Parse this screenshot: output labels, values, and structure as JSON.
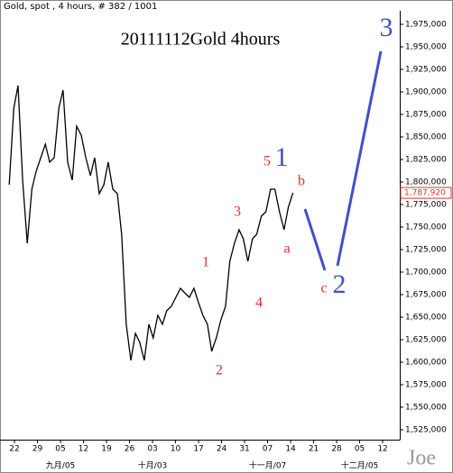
{
  "chart_data": {
    "type": "line",
    "header": "Gold, spot , 4 hours, # 382 / 1001",
    "title": "20111112Gold 4hours",
    "watermark": "Joe",
    "series": [
      {
        "name": "Gold",
        "color": "#000000",
        "x": [
          -1.6,
          -0.2,
          1.1,
          2.5,
          3.9,
          5.3,
          6.6,
          8.0,
          9.4,
          10.7,
          12.1,
          13.5,
          14.8,
          16.2,
          17.6,
          18.9,
          20.3,
          21.7,
          23.1,
          24.4,
          25.8,
          27.2,
          28.5,
          29.9,
          31.3,
          32.6,
          34.0,
          35.4,
          36.8,
          38.1,
          39.5,
          40.9,
          42.2,
          43.6,
          45.0,
          46.3,
          47.7,
          49.1,
          50.5,
          51.8,
          53.2,
          54.6,
          55.9,
          57.3,
          58.7,
          60.0,
          61.4,
          62.8,
          64.2,
          65.5,
          66.9,
          68.3,
          69.6,
          71.0,
          72.4,
          73.7,
          75.1,
          76.5,
          77.9,
          79.2,
          80.6,
          82.0,
          83.3,
          84.7
        ],
        "values": [
          1797000,
          1882000,
          1907000,
          1802000,
          1732000,
          1792000,
          1812000,
          1827000,
          1842000,
          1822000,
          1827000,
          1882000,
          1902000,
          1822000,
          1802000,
          1862000,
          1852000,
          1827000,
          1807000,
          1827000,
          1787000,
          1797000,
          1822000,
          1792000,
          1787000,
          1742000,
          1642000,
          1602000,
          1632000,
          1622000,
          1602000,
          1642000,
          1627000,
          1652000,
          1642000,
          1657000,
          1662000,
          1672000,
          1682000,
          1677000,
          1672000,
          1682000,
          1667000,
          1652000,
          1642000,
          1612000,
          1627000,
          1647000,
          1662000,
          1712000,
          1732000,
          1747000,
          1737000,
          1712000,
          1737000,
          1742000,
          1762000,
          1767000,
          1792000,
          1792000,
          1767000,
          1747000,
          1772000,
          1788000
        ]
      }
    ],
    "last_price": {
      "value": 1787920,
      "label": "1,787,920"
    },
    "wave_labels": [
      "1",
      "2",
      "3",
      "4",
      "5",
      "a",
      "b",
      "c"
    ],
    "wave_targets": [
      "1",
      "2",
      "3"
    ],
    "xlim": [
      -4.4,
      117.2
    ],
    "xticks": [
      {
        "value": 0,
        "label": "22"
      },
      {
        "value": 7,
        "label": "29"
      },
      {
        "value": 14,
        "label": "05"
      },
      {
        "value": 21,
        "label": "12"
      },
      {
        "value": 28,
        "label": "19"
      },
      {
        "value": 35,
        "label": "26"
      },
      {
        "value": 42,
        "label": "03"
      },
      {
        "value": 49,
        "label": "10"
      },
      {
        "value": 56,
        "label": "17"
      },
      {
        "value": 63,
        "label": "24"
      },
      {
        "value": 70,
        "label": "31"
      },
      {
        "value": 77,
        "label": "07"
      },
      {
        "value": 84,
        "label": "14"
      },
      {
        "value": 91,
        "label": "21"
      },
      {
        "value": 98,
        "label": "28"
      },
      {
        "value": 105,
        "label": "05"
      },
      {
        "value": 112,
        "label": "12"
      }
    ],
    "month_labels": [
      {
        "value": 14,
        "label": "九月/05"
      },
      {
        "value": 42,
        "label": "十月/03"
      },
      {
        "value": 77,
        "label": "十一月/07"
      },
      {
        "value": 105,
        "label": "十二月/05"
      }
    ],
    "ylim": [
      1514000,
      1990000
    ],
    "yticks": [
      {
        "value": 1525000,
        "label": "1,525,000"
      },
      {
        "value": 1550000,
        "label": "1,550,000"
      },
      {
        "value": 1575000,
        "label": "1,575,000"
      },
      {
        "value": 1600000,
        "label": "1,600,000"
      },
      {
        "value": 1625000,
        "label": "1,625,000"
      },
      {
        "value": 1650000,
        "label": "1,650,000"
      },
      {
        "value": 1675000,
        "label": "1,675,000"
      },
      {
        "value": 1700000,
        "label": "1,700,000"
      },
      {
        "value": 1725000,
        "label": "1,725,000"
      },
      {
        "value": 1750000,
        "label": "1,750,000"
      },
      {
        "value": 1775000,
        "label": "1,775,000"
      },
      {
        "value": 1800000,
        "label": "1,800,000"
      },
      {
        "value": 1825000,
        "label": "1,825,000"
      },
      {
        "value": 1850000,
        "label": "1,850,000"
      },
      {
        "value": 1875000,
        "label": "1,875,000"
      },
      {
        "value": 1900000,
        "label": "1,900,000"
      },
      {
        "value": 1925000,
        "label": "1,925,000"
      },
      {
        "value": 1950000,
        "label": "1,950,000"
      },
      {
        "value": 1975000,
        "label": "1,975,000"
      }
    ],
    "grid": false
  }
}
